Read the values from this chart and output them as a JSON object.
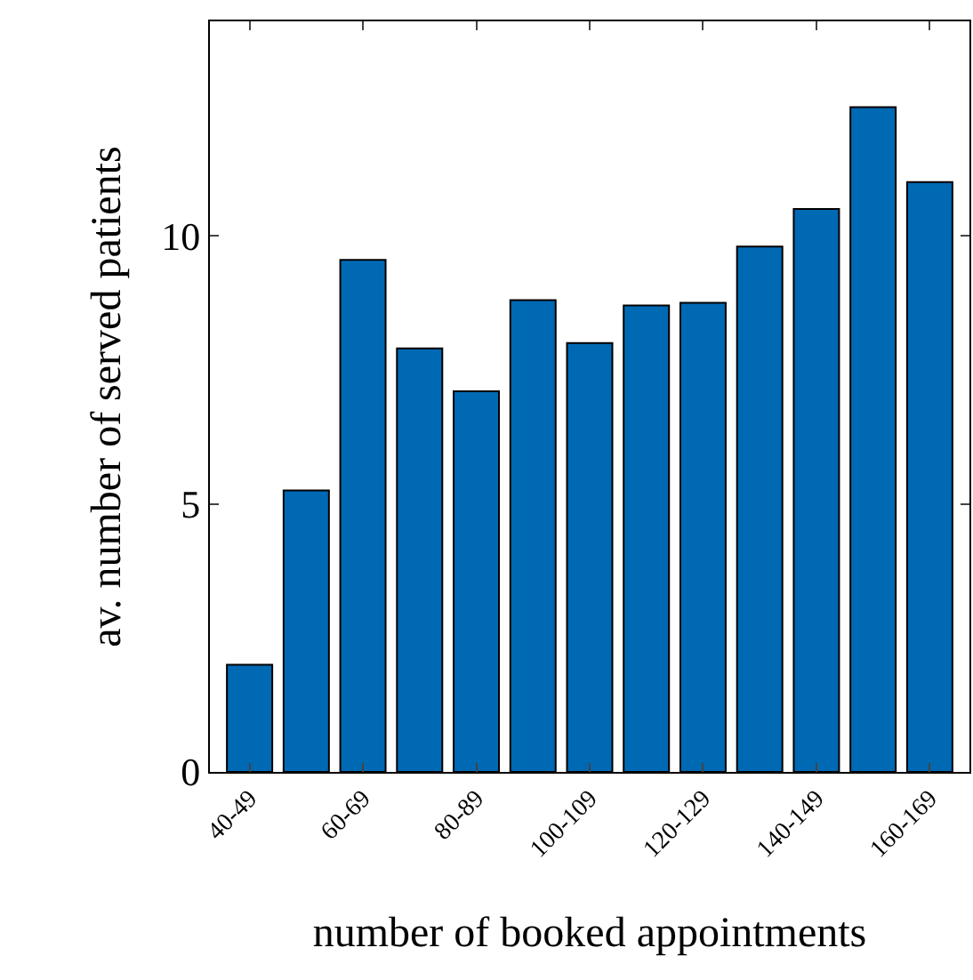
{
  "chart_data": {
    "type": "bar",
    "xlabel": "number of booked appointments",
    "ylabel": "av. number of served patients",
    "categories": [
      "40-49",
      null,
      "60-69",
      null,
      "80-89",
      null,
      "100-109",
      null,
      "120-129",
      null,
      "140-149",
      null,
      "160-169"
    ],
    "values": [
      2.0,
      5.25,
      9.55,
      7.9,
      7.1,
      8.8,
      8.0,
      8.7,
      8.75,
      9.8,
      10.5,
      12.4,
      11.0
    ],
    "color": "#0069b4",
    "ylim": [
      0,
      14
    ],
    "yticks": [
      0,
      5,
      10
    ],
    "legend": false
  }
}
